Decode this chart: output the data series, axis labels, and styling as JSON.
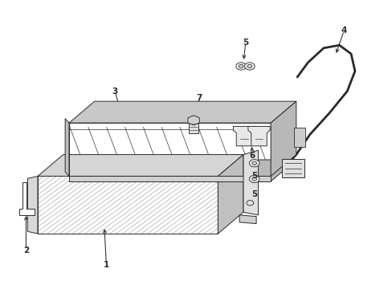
{
  "background_color": "#ffffff",
  "line_color": "#2a2a2a",
  "figsize": [
    4.89,
    3.6
  ],
  "dpi": 100
}
